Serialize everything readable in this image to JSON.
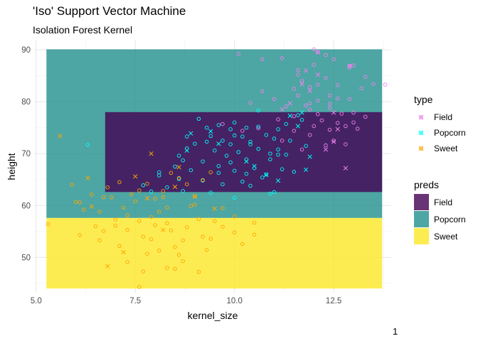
{
  "chart_data": {
    "type": "scatter",
    "title": "'Iso' Support Vector Machine",
    "subtitle": "Isolation Forest Kernel",
    "xlabel": "kernel_size",
    "ylabel": "height",
    "xlim": [
      4.95,
      13.95
    ],
    "ylim": [
      43.2,
      91.8
    ],
    "x_ticks": [
      5.0,
      7.5,
      10.0,
      12.5
    ],
    "x_tick_labels": [
      "5.0",
      "7.5",
      "10.0",
      "12.5"
    ],
    "y_ticks": [
      50,
      60,
      70,
      80,
      90
    ],
    "y_tick_labels": [
      "50",
      "60",
      "70",
      "80",
      "90"
    ],
    "grid": true,
    "legend_position": "right",
    "regions": [
      {
        "pred": "Popcorn",
        "x": [
          5.26,
          13.72
        ],
        "y": [
          57.6,
          90.1
        ]
      },
      {
        "pred": "Sweet",
        "x": [
          5.26,
          13.72
        ],
        "y": [
          44.0,
          57.6
        ]
      },
      {
        "pred": "Field",
        "x": [
          6.74,
          13.72
        ],
        "y": [
          62.6,
          78.0
        ]
      }
    ],
    "preds_legend": {
      "title": "preds",
      "items": [
        {
          "label": "Field",
          "color": "#440154"
        },
        {
          "label": "Popcorn",
          "color": "#21908C"
        },
        {
          "label": "Sweet",
          "color": "#FDE725"
        }
      ]
    },
    "type_legend": {
      "title": "type",
      "items": [
        {
          "label": "Field",
          "color": "#EE82EE"
        },
        {
          "label": "Popcorn",
          "color": "#00FFFF"
        },
        {
          "label": "Sweet",
          "color": "#FFA500"
        }
      ]
    },
    "series": [
      {
        "name": "Field",
        "color": "#EE82EE",
        "points": [
          [
            10.1,
            89.2
          ],
          [
            11.2,
            88.4
          ],
          [
            11.6,
            86.1
          ],
          [
            12.0,
            90.1
          ],
          [
            12.3,
            89.0
          ],
          [
            12.5,
            88.2
          ],
          [
            12.9,
            86.6
          ],
          [
            13.0,
            87.0
          ],
          [
            13.3,
            84.8
          ],
          [
            12.3,
            84.6
          ],
          [
            11.7,
            84.0
          ],
          [
            11.5,
            82.5
          ],
          [
            11.9,
            82.8
          ],
          [
            12.6,
            83.2
          ],
          [
            13.2,
            82.6
          ],
          [
            13.5,
            83.4
          ],
          [
            13.8,
            83.3
          ],
          [
            12.9,
            80.5
          ],
          [
            12.1,
            80.2
          ],
          [
            11.6,
            81.2
          ],
          [
            11.3,
            79.1
          ],
          [
            11.9,
            78.5
          ],
          [
            12.4,
            78.8
          ],
          [
            12.7,
            77.7
          ],
          [
            13.0,
            77.9
          ],
          [
            13.3,
            77.1
          ],
          [
            11.5,
            77.2
          ],
          [
            11.1,
            76.6
          ],
          [
            12.2,
            76.4
          ],
          [
            12.8,
            75.3
          ],
          [
            12.4,
            74.6
          ],
          [
            11.9,
            73.6
          ],
          [
            12.5,
            72.5
          ],
          [
            11.2,
            72.5
          ],
          [
            10.6,
            74.9
          ],
          [
            10.2,
            74.4
          ],
          [
            9.7,
            75.7
          ],
          [
            12.8,
            71.8
          ],
          [
            12.3,
            71.6
          ],
          [
            11.7,
            70.8
          ],
          [
            10.7,
            82.0
          ],
          [
            11.9,
            79.7
          ],
          [
            11.0,
            80.5
          ],
          [
            10.4,
            79.8
          ],
          [
            12.0,
            75.3
          ],
          [
            13.1,
            74.8
          ],
          [
            12.6,
            80.6
          ],
          [
            11.8,
            79.3
          ],
          [
            12.1,
            77.6
          ],
          [
            13.0,
            76.0
          ],
          [
            12.1,
            89.6
          ],
          [
            12.9,
            86.9
          ],
          [
            10.7,
            88.2
          ],
          [
            11.6,
            85.2
          ],
          [
            12.1,
            83.3
          ],
          [
            12.4,
            81.2
          ],
          [
            12.6,
            75.9
          ],
          [
            11.5,
            74.4
          ],
          [
            12.4,
            79.6
          ],
          [
            12.0,
            87.1
          ]
        ],
        "x_markers": [
          [
            12.1,
            89.5
          ],
          [
            11.8,
            86.0
          ],
          [
            11.9,
            82.1
          ],
          [
            12.9,
            86.9
          ],
          [
            12.5,
            77.9
          ],
          [
            12.6,
            74.7
          ],
          [
            12.8,
            67.2
          ],
          [
            11.2,
            78.5
          ],
          [
            12.1,
            85.2
          ],
          [
            12.3,
            70.8
          ],
          [
            11.4,
            79.7
          ],
          [
            11.7,
            83.4
          ],
          [
            12.5,
            72.3
          ]
        ]
      },
      {
        "name": "Popcorn",
        "color": "#00FFFF",
        "points": [
          [
            9.1,
            76.7
          ],
          [
            9.6,
            75.5
          ],
          [
            9.3,
            75.0
          ],
          [
            10.0,
            73.5
          ],
          [
            10.4,
            72.3
          ],
          [
            9.7,
            72.5
          ],
          [
            9.3,
            72.3
          ],
          [
            9.0,
            71.9
          ],
          [
            8.8,
            71.0
          ],
          [
            9.5,
            70.6
          ],
          [
            10.1,
            70.3
          ],
          [
            10.6,
            70.9
          ],
          [
            10.9,
            70.0
          ],
          [
            11.1,
            69.8
          ],
          [
            10.3,
            68.9
          ],
          [
            9.9,
            68.3
          ],
          [
            9.2,
            68.5
          ],
          [
            8.7,
            68.7
          ],
          [
            8.5,
            67.5
          ],
          [
            8.9,
            66.8
          ],
          [
            9.6,
            66.3
          ],
          [
            10.0,
            66.7
          ],
          [
            10.5,
            67.2
          ],
          [
            10.8,
            66.0
          ],
          [
            11.2,
            67.0
          ],
          [
            11.5,
            66.5
          ],
          [
            11.0,
            62.6
          ],
          [
            10.9,
            62.3
          ],
          [
            10.2,
            64.6
          ],
          [
            9.7,
            64.1
          ],
          [
            9.2,
            64.8
          ],
          [
            8.6,
            65.1
          ],
          [
            8.1,
            65.8
          ],
          [
            8.3,
            63.5
          ],
          [
            7.9,
            62.7
          ],
          [
            7.7,
            63.9
          ],
          [
            8.7,
            62.8
          ],
          [
            9.4,
            62.5
          ],
          [
            10.4,
            63.8
          ],
          [
            10.7,
            65.4
          ],
          [
            8.8,
            73.3
          ],
          [
            9.4,
            73.4
          ],
          [
            10.3,
            75.0
          ],
          [
            10.6,
            75.2
          ],
          [
            11.3,
            75.7
          ],
          [
            11.7,
            76.5
          ],
          [
            11.4,
            72.5
          ],
          [
            11.0,
            72.9
          ],
          [
            6.3,
            71.7
          ],
          [
            9.8,
            69.6
          ],
          [
            9.9,
            71.8
          ],
          [
            10.2,
            73.3
          ],
          [
            10.4,
            71.8
          ],
          [
            10.8,
            73.6
          ],
          [
            11.1,
            74.7
          ],
          [
            11.6,
            77.4
          ],
          [
            10.6,
            78.3
          ],
          [
            10.0,
            76.0
          ],
          [
            9.9,
            74.7
          ],
          [
            8.6,
            69.6
          ],
          [
            8.1,
            66.4
          ],
          [
            10.0,
            61.5
          ],
          [
            10.3,
            66.1
          ],
          [
            9.6,
            67.6
          ],
          [
            10.9,
            68.9
          ],
          [
            11.3,
            69.8
          ],
          [
            11.8,
            71.5
          ],
          [
            11.1,
            70.8
          ]
        ],
        "x_markers": [
          [
            11.4,
            77.3
          ],
          [
            11.7,
            77.9
          ],
          [
            8.8,
            70.6
          ],
          [
            9.6,
            71.9
          ],
          [
            11.6,
            75.3
          ],
          [
            11.1,
            64.8
          ],
          [
            11.8,
            66.9
          ],
          [
            10.5,
            67.6
          ],
          [
            10.3,
            68.5
          ],
          [
            9.4,
            74.3
          ],
          [
            8.9,
            73.9
          ],
          [
            11.9,
            69.4
          ],
          [
            10.8,
            65.9
          ]
        ]
      },
      {
        "name": "Sweet",
        "color": "#FFA500",
        "points": [
          [
            5.3,
            56.4
          ],
          [
            5.9,
            64.0
          ],
          [
            6.0,
            60.7
          ],
          [
            6.1,
            54.3
          ],
          [
            6.5,
            56.0
          ],
          [
            6.6,
            58.8
          ],
          [
            6.7,
            61.6
          ],
          [
            6.8,
            63.5
          ],
          [
            7.0,
            57.3
          ],
          [
            7.2,
            59.6
          ],
          [
            7.3,
            55.3
          ],
          [
            7.5,
            60.8
          ],
          [
            7.6,
            57.0
          ],
          [
            7.7,
            54.0
          ],
          [
            7.8,
            50.7
          ],
          [
            7.9,
            53.5
          ],
          [
            8.0,
            56.2
          ],
          [
            8.1,
            58.8
          ],
          [
            8.2,
            61.6
          ],
          [
            8.3,
            59.6
          ],
          [
            8.4,
            55.2
          ],
          [
            8.5,
            52.0
          ],
          [
            8.6,
            50.5
          ],
          [
            8.7,
            53.3
          ],
          [
            8.8,
            55.8
          ],
          [
            8.9,
            59.9
          ],
          [
            9.0,
            60.2
          ],
          [
            9.1,
            57.4
          ],
          [
            9.2,
            54.0
          ],
          [
            9.3,
            51.4
          ],
          [
            9.5,
            57.0
          ],
          [
            9.7,
            59.5
          ],
          [
            10.0,
            54.8
          ],
          [
            10.2,
            52.6
          ],
          [
            10.5,
            56.7
          ],
          [
            6.2,
            59.2
          ],
          [
            6.4,
            62.1
          ],
          [
            6.9,
            61.6
          ],
          [
            7.1,
            64.5
          ],
          [
            7.4,
            62.2
          ],
          [
            7.6,
            62.9
          ],
          [
            7.8,
            64.2
          ],
          [
            8.0,
            61.3
          ],
          [
            8.2,
            62.8
          ],
          [
            8.4,
            66.3
          ],
          [
            8.6,
            65.3
          ],
          [
            8.8,
            64.1
          ],
          [
            9.0,
            61.8
          ],
          [
            9.2,
            64.9
          ],
          [
            9.4,
            66.4
          ],
          [
            6.7,
            55.1
          ],
          [
            7.1,
            52.2
          ],
          [
            7.3,
            49.1
          ],
          [
            7.6,
            44.3
          ],
          [
            7.7,
            47.3
          ],
          [
            8.1,
            51.3
          ],
          [
            8.3,
            48.0
          ],
          [
            8.5,
            47.8
          ],
          [
            8.7,
            49.3
          ],
          [
            9.1,
            47.2
          ],
          [
            7.0,
            56.1
          ],
          [
            6.6,
            53.3
          ],
          [
            6.1,
            60.6
          ],
          [
            7.3,
            58.1
          ],
          [
            7.9,
            57.8
          ],
          [
            8.3,
            56.6
          ],
          [
            9.4,
            53.6
          ],
          [
            9.7,
            55.9
          ],
          [
            10.0,
            57.9
          ],
          [
            10.5,
            54.4
          ]
        ],
        "x_markers": [
          [
            5.6,
            73.4
          ],
          [
            6.3,
            65.3
          ],
          [
            6.8,
            48.3
          ],
          [
            6.4,
            59.8
          ],
          [
            7.5,
            65.6
          ],
          [
            7.9,
            70.0
          ],
          [
            8.6,
            67.4
          ],
          [
            7.2,
            51.0
          ],
          [
            9.0,
            61.7
          ],
          [
            8.5,
            63.6
          ],
          [
            8.2,
            55.3
          ],
          [
            7.8,
            61.4
          ],
          [
            9.5,
            59.4
          ]
        ]
      }
    ]
  },
  "page_number": "1"
}
